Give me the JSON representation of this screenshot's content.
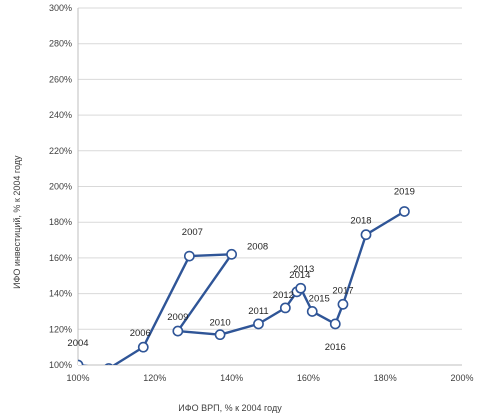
{
  "chart_data": {
    "type": "scatter",
    "xlabel": "ИФО ВРП, % к 2004 году",
    "ylabel": "ИФО инвестиций, % к 2004 году",
    "xlim": [
      100,
      200
    ],
    "ylim": [
      100,
      300
    ],
    "x_ticks": [
      100,
      120,
      140,
      160,
      180,
      200
    ],
    "y_ticks": [
      100,
      120,
      140,
      160,
      180,
      200,
      220,
      240,
      260,
      280,
      300
    ],
    "tick_suffix": "%",
    "grid": "horizontal",
    "legend": "none",
    "series": [
      {
        "color": "#2f5597",
        "points": [
          {
            "label": "2004",
            "x": 100,
            "y": 100
          },
          {
            "label": "",
            "x": 108,
            "y": 98
          },
          {
            "label": "2006",
            "x": 117,
            "y": 110
          },
          {
            "label": "2007",
            "x": 129,
            "y": 161
          },
          {
            "label": "2008",
            "x": 140,
            "y": 162
          },
          {
            "label": "2009",
            "x": 126,
            "y": 119
          },
          {
            "label": "2010",
            "x": 137,
            "y": 117
          },
          {
            "label": "2011",
            "x": 147,
            "y": 123
          },
          {
            "label": "2012",
            "x": 154,
            "y": 132
          },
          {
            "label": "2014",
            "x": 157,
            "y": 141
          },
          {
            "label": "2013",
            "x": 158,
            "y": 143
          },
          {
            "label": "2015",
            "x": 161,
            "y": 130
          },
          {
            "label": "2016",
            "x": 167,
            "y": 123
          },
          {
            "label": "2017",
            "x": 169,
            "y": 134
          },
          {
            "label": "2018",
            "x": 175,
            "y": 173
          },
          {
            "label": "2019",
            "x": 185,
            "y": 186
          }
        ]
      }
    ]
  }
}
